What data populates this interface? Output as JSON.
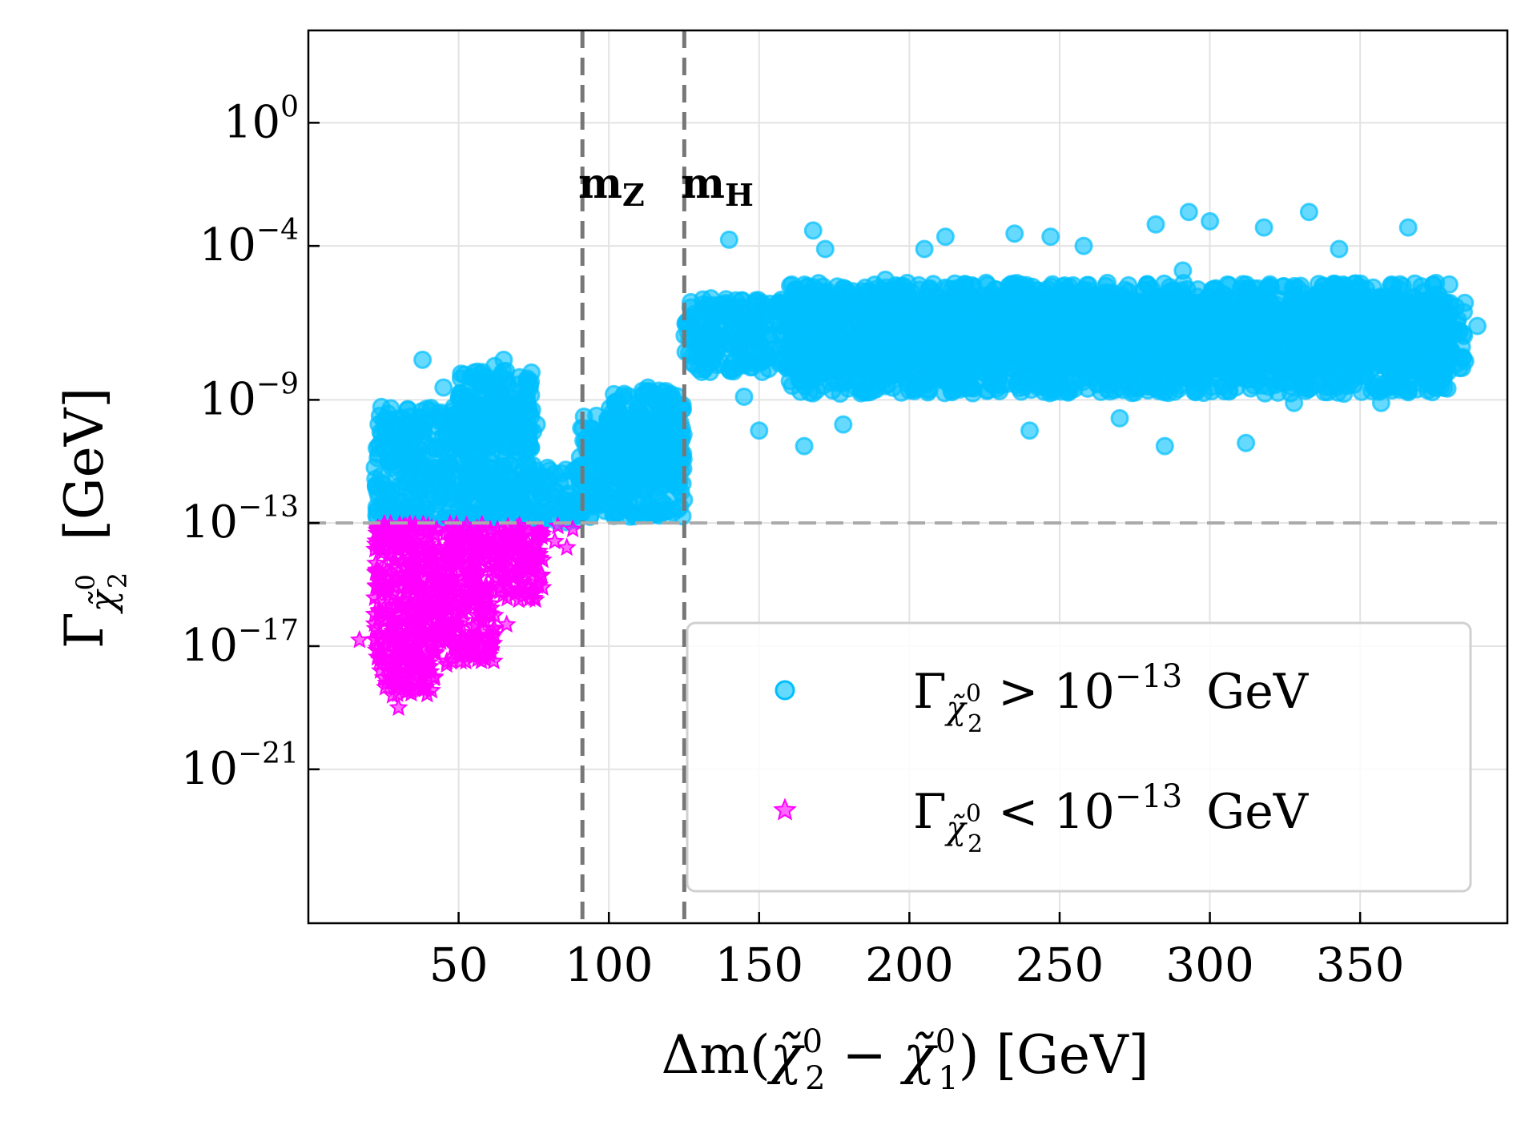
{
  "chart_data": {
    "type": "scatter",
    "xlabel": "Δm(χ̃₂⁰ − χ̃₁⁰)  [GeV]",
    "xlabel_parts": {
      "pre": "Δm(",
      "chi2": "χ̃",
      "sup2": "0",
      "sub2": "2",
      "minus": " − ",
      "chi1": "χ̃",
      "sup1": "0",
      "sub1": "1",
      "post": ")  [GeV]"
    },
    "ylabel": "Γχ̃₂⁰  [GeV]",
    "ylabel_parts": {
      "gamma": "Γ",
      "chi": "χ̃",
      "sup": "0",
      "sub": "2",
      "unit": "[GeV]"
    },
    "xscale": "linear",
    "yscale": "log",
    "xlim": [
      0,
      399
    ],
    "ylim_log10": [
      -26,
      3
    ],
    "x_ticks": [
      "50",
      "100",
      "150",
      "200",
      "250",
      "300",
      "350"
    ],
    "x_tick_values": [
      50,
      100,
      150,
      200,
      250,
      300,
      350
    ],
    "y_ticks": [
      {
        "base": "10",
        "exp": "0",
        "log": 0
      },
      {
        "base": "10",
        "exp": "−4",
        "log": -4
      },
      {
        "base": "10",
        "exp": "−9",
        "log": -9
      },
      {
        "base": "10",
        "exp": "−13",
        "log": -13
      },
      {
        "base": "10",
        "exp": "−17",
        "log": -17
      },
      {
        "base": "10",
        "exp": "−21",
        "log": -21
      }
    ],
    "grid": true,
    "reference_lines": [
      {
        "orientation": "vertical",
        "x": 91.2,
        "label": "m",
        "label_sub": "Z"
      },
      {
        "orientation": "vertical",
        "x": 125.1,
        "label": "m",
        "label_sub": "H"
      },
      {
        "orientation": "horizontal",
        "y_log10": -13
      }
    ],
    "legend_position": "lower-right",
    "series": [
      {
        "name": "Γχ̃₂⁰ > 10⁻¹³ GeV",
        "legend_parts": {
          "gamma": "Γ",
          "chi": "χ̃",
          "sup": "0",
          "sub": "2",
          "rel": " > 10",
          "exp": "−13",
          "unit": "GeV"
        },
        "marker": "circle",
        "color": "#00bfff",
        "description": "heavier-splitting decay widths, roughly 1e-13 to 1e-5 GeV",
        "points": [
          [
            38,
            -7.7
          ],
          [
            45,
            -8.6
          ],
          [
            47,
            -10.2
          ],
          [
            53,
            -9.0
          ],
          [
            58,
            -8.1
          ],
          [
            62,
            -7.9
          ],
          [
            65,
            -7.7
          ],
          [
            70,
            -8.5
          ],
          [
            42,
            -10.6
          ],
          [
            32,
            -11.5
          ],
          [
            28,
            -12.0
          ],
          [
            35,
            -11.0
          ],
          [
            50,
            -11.8
          ],
          [
            60,
            -11.2
          ],
          [
            72,
            -10.7
          ],
          [
            76,
            -9.8
          ],
          [
            80,
            -11.6
          ],
          [
            86,
            -12.3
          ],
          [
            88,
            -12.8
          ],
          [
            95,
            -11.7
          ],
          [
            100,
            -10.8
          ],
          [
            105,
            -10.1
          ],
          [
            110,
            -10.9
          ],
          [
            113,
            -8.6
          ],
          [
            117,
            -9.3
          ],
          [
            120,
            -12.6
          ],
          [
            122,
            -10.5
          ],
          [
            124,
            -12.0
          ],
          [
            128,
            -7.8
          ],
          [
            132,
            -6.9
          ],
          [
            138,
            -5.9
          ],
          [
            140,
            -3.8
          ],
          [
            145,
            -8.9
          ],
          [
            150,
            -10.0
          ],
          [
            153,
            -6.0
          ],
          [
            160,
            -7.2
          ],
          [
            165,
            -10.5
          ],
          [
            168,
            -3.5
          ],
          [
            172,
            -4.1
          ],
          [
            178,
            -9.8
          ],
          [
            185,
            -6.8
          ],
          [
            192,
            -5.1
          ],
          [
            198,
            -7.4
          ],
          [
            205,
            -4.1
          ],
          [
            212,
            -3.7
          ],
          [
            220,
            -8.6
          ],
          [
            228,
            -7.3
          ],
          [
            235,
            -3.6
          ],
          [
            240,
            -10.0
          ],
          [
            245,
            -5.5
          ],
          [
            247,
            -3.7
          ],
          [
            252,
            -8.3
          ],
          [
            258,
            -4.0
          ],
          [
            265,
            -6.3
          ],
          [
            270,
            -9.6
          ],
          [
            278,
            -5.8
          ],
          [
            282,
            -3.3
          ],
          [
            285,
            -10.5
          ],
          [
            291,
            -4.8
          ],
          [
            293,
            -2.9
          ],
          [
            297,
            -8.2
          ],
          [
            300,
            -3.2
          ],
          [
            306,
            -7.0
          ],
          [
            312,
            -10.4
          ],
          [
            318,
            -3.4
          ],
          [
            322,
            -5.9
          ],
          [
            328,
            -9.1
          ],
          [
            333,
            -2.9
          ],
          [
            338,
            -6.8
          ],
          [
            343,
            -4.1
          ],
          [
            348,
            -8.5
          ],
          [
            352,
            -5.4
          ],
          [
            357,
            -9.1
          ],
          [
            362,
            -7.6
          ],
          [
            366,
            -3.4
          ],
          [
            369,
            -6.4
          ],
          [
            372,
            -8.4
          ],
          [
            377,
            -5.8
          ],
          [
            383,
            -6.8
          ],
          [
            389,
            -6.6
          ],
          [
            140,
            -6.2
          ],
          [
            160,
            -6.6
          ],
          [
            180,
            -6.0
          ],
          [
            200,
            -6.9
          ],
          [
            220,
            -5.9
          ],
          [
            240,
            -6.4
          ],
          [
            260,
            -6.1
          ],
          [
            280,
            -6.7
          ],
          [
            300,
            -5.7
          ],
          [
            320,
            -6.5
          ],
          [
            340,
            -6.0
          ],
          [
            360,
            -6.3
          ],
          [
            380,
            -6.2
          ],
          [
            130,
            -6.4
          ],
          [
            150,
            -7.5
          ],
          [
            170,
            -6.8
          ],
          [
            190,
            -7.9
          ],
          [
            210,
            -6.4
          ],
          [
            230,
            -7.2
          ],
          [
            250,
            -6.5
          ],
          [
            270,
            -7.4
          ],
          [
            290,
            -6.0
          ],
          [
            310,
            -7.0
          ],
          [
            330,
            -6.3
          ],
          [
            350,
            -7.6
          ],
          [
            370,
            -5.9
          ]
        ],
        "bands": [
          {
            "x0": 22,
            "x1": 75,
            "y0": -13,
            "y1": -9.2
          },
          {
            "x0": 50,
            "x1": 75,
            "y0": -10.0,
            "y1": -8.0
          },
          {
            "x0": 75,
            "x1": 92,
            "y0": -13,
            "y1": -11.2
          },
          {
            "x0": 90,
            "x1": 125,
            "y0": -12.8,
            "y1": -9.5
          },
          {
            "x0": 100,
            "x1": 125,
            "y0": -11.5,
            "y1": -8.7
          },
          {
            "x0": 125,
            "x1": 385,
            "y0": -8.1,
            "y1": -5.7
          },
          {
            "x0": 160,
            "x1": 380,
            "y0": -8.8,
            "y1": -5.2
          }
        ]
      },
      {
        "name": "Γχ̃₂⁰ < 10⁻¹³ GeV",
        "legend_parts": {
          "gamma": "Γ",
          "chi": "χ̃",
          "sup": "0",
          "sub": "2",
          "rel": " < 10",
          "exp": "−13",
          "unit": "GeV"
        },
        "marker": "star",
        "color": "#ff00ff",
        "description": "light-splitting decay widths, roughly 1e-19 to 1e-13 GeV",
        "points": [
          [
            17,
            -16.8
          ],
          [
            28,
            -18.6
          ],
          [
            30,
            -19.0
          ],
          [
            33,
            -18.3
          ],
          [
            38,
            -18.4
          ],
          [
            42,
            -18.0
          ],
          [
            46,
            -17.6
          ],
          [
            50,
            -17.2
          ],
          [
            55,
            -16.9
          ],
          [
            62,
            -16.0
          ],
          [
            66,
            -16.3
          ],
          [
            70,
            -15.5
          ],
          [
            74,
            -14.7
          ],
          [
            78,
            -14.2
          ],
          [
            82,
            -13.6
          ],
          [
            86,
            -13.8
          ],
          [
            88,
            -13.2
          ],
          [
            83,
            -13.1
          ],
          [
            77,
            -13.3
          ],
          [
            24,
            -17.8
          ],
          [
            26,
            -18.2
          ],
          [
            57,
            -17.0
          ]
        ],
        "bands": [
          {
            "x0": 22,
            "x1": 78,
            "y0": -15.5,
            "y1": -13
          },
          {
            "x0": 22,
            "x1": 62,
            "y0": -17.5,
            "y1": -15.5
          },
          {
            "x0": 24,
            "x1": 42,
            "y0": -18.6,
            "y1": -17.5
          }
        ]
      }
    ]
  }
}
